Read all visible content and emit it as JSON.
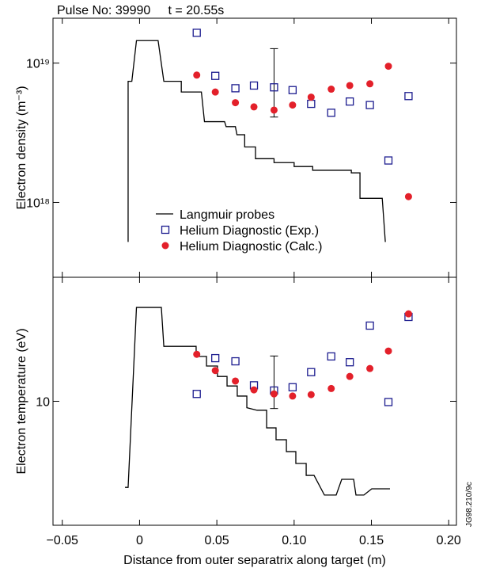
{
  "chart_data": [
    {
      "type": "scatter",
      "title": "Pulse No: 39990     t = 20.55s",
      "ylabel": "Electron density (m⁻³)",
      "xlim": [
        -0.056,
        0.205
      ],
      "xticks": [
        {
          "value": -0.05,
          "label": "−0.05"
        },
        0,
        0.05,
        {
          "value": 0.1,
          "label": "0.10"
        },
        0.15,
        {
          "value": 0.2,
          "label": "0.20"
        }
      ],
      "ylog": true,
      "ylim": [
        2.9e+17,
        2.1e+19
      ],
      "yticks": [
        {
          "value": 1e+18,
          "label": "10¹⁸"
        },
        {
          "value": 1e+19,
          "label": "10¹⁹"
        }
      ],
      "legend": "lower left",
      "series": [
        {
          "name": "Langmuir probes",
          "mode": "line",
          "color": "#000000",
          "x": [
            -0.0074,
            -0.0074,
            -0.005,
            -0.002,
            0.012,
            0.0157,
            0.027,
            0.027,
            0.04,
            0.042,
            0.055,
            0.056,
            0.062,
            0.063,
            0.068,
            0.068,
            0.075,
            0.075,
            0.087,
            0.087,
            0.1,
            0.1,
            0.112,
            0.112,
            0.137,
            0.137,
            0.1426,
            0.1426,
            0.157,
            0.159
          ],
          "values": [
            5.2e+17,
            7.4e+18,
            7.4e+18,
            1.45e+19,
            1.45e+19,
            7.4e+18,
            7.4e+18,
            6.2e+18,
            6.2e+18,
            3.8e+18,
            3.8e+18,
            3.5e+18,
            3.5e+18,
            3.06e+18,
            3.06e+18,
            2.5e+18,
            2.5e+18,
            2.06e+18,
            2.06e+18,
            1.93e+18,
            1.93e+18,
            1.81e+18,
            1.81e+18,
            1.7e+18,
            1.7e+18,
            1.63e+18,
            1.63e+18,
            1.07e+18,
            1.07e+18,
            5.2e+17
          ]
        },
        {
          "name": "Helium Diagnostic (Exp.)",
          "mode": "square",
          "color": "#1c1c8f",
          "x": [
            0.037,
            0.049,
            0.062,
            0.074,
            0.087,
            0.099,
            0.111,
            0.124,
            0.136,
            0.149,
            0.161,
            0.174
          ],
          "values": [
            1.65e+19,
            8.1e+18,
            6.6e+18,
            6.9e+18,
            6.7e+18,
            6.4e+18,
            5.1e+18,
            4.4e+18,
            5.3e+18,
            5e+18,
            2e+18,
            5.8e+18
          ]
        },
        {
          "name": "Helium Diagnostic (Calc.)",
          "mode": "circle",
          "color": "#e3202a",
          "x": [
            0.037,
            0.049,
            0.062,
            0.074,
            0.087,
            0.099,
            0.111,
            0.124,
            0.136,
            0.149,
            0.161,
            0.174
          ],
          "values": [
            8.2e+18,
            6.2e+18,
            5.2e+18,
            4.85e+18,
            4.6e+18,
            5e+18,
            5.7e+18,
            6.5e+18,
            6.9e+18,
            7.1e+18,
            9.5e+18,
            1.1e+18
          ]
        }
      ],
      "errorbar": {
        "x": 0.087,
        "low": 4.1e+18,
        "high": 1.27e+19
      }
    },
    {
      "type": "scatter",
      "ylabel": "Electron temperature (eV)",
      "xlabel": "Distance from outer separatrix along target (m)",
      "xlim": [
        -0.056,
        0.205
      ],
      "xticks": [
        {
          "value": -0.05,
          "label": "−0.05"
        },
        0,
        0.05,
        {
          "value": 0.1,
          "label": "0.10"
        },
        0.15,
        {
          "value": 0.2,
          "label": "0.20"
        }
      ],
      "ylog": true,
      "ylim": [
        2,
        50
      ],
      "yticks": [
        10
      ],
      "series": [
        {
          "mode": "line",
          "color": "#000000",
          "x": [
            -0.0094,
            -0.0074,
            -0.002,
            0.0141,
            0.0157,
            0.0366,
            0.0366,
            0.0433,
            0.0433,
            0.0504,
            0.0504,
            0.0566,
            0.0566,
            0.0632,
            0.0632,
            0.0694,
            0.0694,
            0.076,
            0.0822,
            0.0822,
            0.0883,
            0.0883,
            0.095,
            0.095,
            0.1011,
            0.1011,
            0.1078,
            0.1078,
            0.1129,
            0.1196,
            0.1272,
            0.1308,
            0.1385,
            0.14,
            0.1451,
            0.1502,
            0.162
          ],
          "values": [
            3.27,
            3.27,
            33.8,
            33.8,
            20.4,
            20.4,
            17.9,
            17.9,
            15.8,
            15.8,
            13.8,
            13.8,
            12.2,
            12.2,
            10.7,
            10.7,
            9.2,
            8.9,
            8.9,
            7.08,
            7.08,
            6.07,
            6.07,
            5.2,
            5.2,
            4.46,
            4.46,
            3.82,
            3.82,
            2.96,
            2.96,
            3.63,
            3.63,
            2.96,
            2.96,
            3.21,
            3.21
          ]
        },
        {
          "mode": "square",
          "color": "#1c1c8f",
          "x": [
            0.037,
            0.049,
            0.062,
            0.074,
            0.087,
            0.099,
            0.111,
            0.124,
            0.136,
            0.149,
            0.161,
            0.174
          ],
          "values": [
            11.0,
            17.5,
            16.8,
            12.3,
            11.5,
            12.0,
            14.6,
            17.9,
            16.6,
            26.7,
            9.9,
            29.9
          ]
        },
        {
          "mode": "circle",
          "color": "#e3202a",
          "x": [
            0.037,
            0.049,
            0.062,
            0.074,
            0.087,
            0.099,
            0.111,
            0.124,
            0.136,
            0.149,
            0.161,
            0.174
          ],
          "values": [
            18.4,
            14.9,
            13.0,
            11.6,
            11.0,
            10.7,
            10.9,
            11.8,
            13.8,
            15.3,
            19.2,
            31.1
          ]
        }
      ],
      "errorbar": {
        "x": 0.087,
        "low": 9.1,
        "high": 18.0
      }
    }
  ],
  "figure_code": "JG98.210/9c"
}
